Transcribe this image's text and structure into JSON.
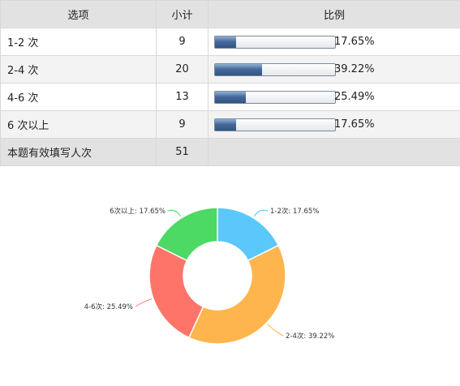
{
  "table": {
    "headers": [
      "选项",
      "小计",
      "比例"
    ],
    "rows": [
      {
        "option": "1-2 次",
        "count": "9",
        "percent_text": "17.65%",
        "percent": 17.65
      },
      {
        "option": "2-4 次",
        "count": "20",
        "percent_text": "39.22%",
        "percent": 39.22
      },
      {
        "option": "4-6 次",
        "count": "13",
        "percent_text": "25.49%",
        "percent": 25.49
      },
      {
        "option": "6 次以上",
        "count": "9",
        "percent_text": "17.65%",
        "percent": 17.65
      }
    ],
    "total": {
      "label": "本题有效填写人次",
      "count": "51"
    }
  },
  "chart_data": {
    "type": "pie",
    "donut": true,
    "slices": [
      {
        "label": "1-2次: 17.65%",
        "value": 17.65,
        "color": "#5ac8fa"
      },
      {
        "label": "2-4次: 39.22%",
        "value": 39.22,
        "color": "#ffb54d"
      },
      {
        "label": "4-6次: 25.49%",
        "value": 25.49,
        "color": "#ff7469"
      },
      {
        "label": "6次以上: 17.65%",
        "value": 17.65,
        "color": "#4cd964"
      }
    ]
  }
}
